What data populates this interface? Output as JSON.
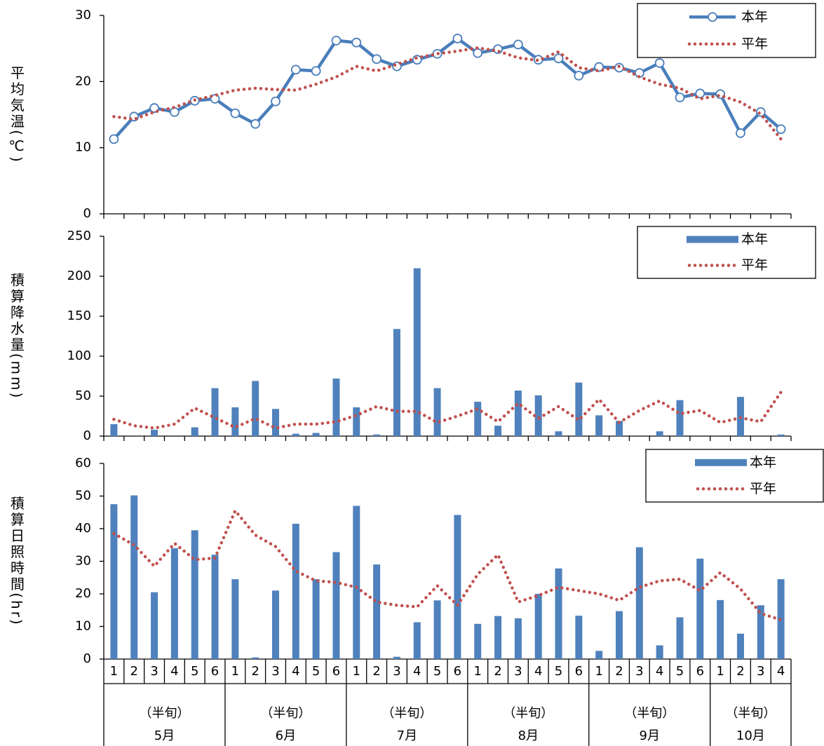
{
  "chart_data": [
    {
      "type": "line",
      "ylabel": "平均気温(℃)",
      "ylim": [
        0,
        30
      ],
      "yticks": [
        0,
        10,
        20,
        30
      ],
      "legend": "upper right",
      "series": [
        {
          "name": "本年",
          "type": "line",
          "color": "#4a7ebb",
          "markers": true,
          "line_style": "solid",
          "values": [
            11.3,
            14.7,
            16.0,
            15.4,
            17.1,
            17.4,
            15.2,
            13.6,
            17.0,
            21.8,
            21.6,
            26.2,
            25.9,
            23.4,
            22.3,
            23.3,
            24.2,
            26.5,
            24.3,
            24.9,
            25.6,
            23.3,
            23.5,
            20.9,
            22.2,
            22.1,
            21.3,
            22.8,
            17.6,
            18.2,
            18.1,
            12.2,
            15.4,
            12.8
          ]
        },
        {
          "name": "平年",
          "type": "line",
          "color": "#c0504d",
          "markers": false,
          "line_style": "dotted",
          "values": [
            14.7,
            14.3,
            15.4,
            16.1,
            17.2,
            17.9,
            18.7,
            19.0,
            18.8,
            18.7,
            19.6,
            20.7,
            22.3,
            21.6,
            22.6,
            23.6,
            24.2,
            24.6,
            25.1,
            24.6,
            23.6,
            23.2,
            24.5,
            22.1,
            21.6,
            22.3,
            20.7,
            19.6,
            19.0,
            17.4,
            17.9,
            16.9,
            15.1,
            11.3
          ]
        }
      ]
    },
    {
      "type": "bar",
      "ylabel": "積算降水量(mm)",
      "ylim": [
        0,
        250
      ],
      "yticks": [
        0,
        50,
        100,
        150,
        200,
        250
      ],
      "legend": "upper right",
      "series": [
        {
          "name": "本年",
          "type": "bar",
          "color": "#4f81bd",
          "values": [
            15,
            0,
            8,
            0,
            11,
            60,
            36,
            69,
            34,
            3,
            4,
            72,
            36,
            2,
            134,
            210,
            60,
            0,
            43,
            13,
            57,
            51,
            6,
            67,
            26,
            19,
            0,
            6,
            45,
            0,
            0,
            49,
            0,
            2
          ]
        },
        {
          "name": "平年",
          "type": "line",
          "color": "#c0504d",
          "markers": false,
          "line_style": "dotted",
          "values": [
            21,
            13,
            10,
            15,
            35,
            23,
            11,
            22,
            10,
            15,
            15,
            18,
            26,
            37,
            31,
            31,
            17,
            25,
            34,
            18,
            41,
            22,
            37,
            20,
            46,
            17,
            32,
            44,
            28,
            32,
            17,
            23,
            18,
            55
          ]
        }
      ]
    },
    {
      "type": "bar",
      "ylabel": "積算日照時間(hr)",
      "ylim": [
        0,
        60
      ],
      "yticks": [
        0,
        10,
        20,
        30,
        40,
        50,
        60
      ],
      "legend": "upper right",
      "series": [
        {
          "name": "本年",
          "type": "bar",
          "color": "#4f81bd",
          "values": [
            47.5,
            50.2,
            20.5,
            34,
            39.5,
            32,
            24.5,
            0.5,
            21,
            41.5,
            24.5,
            32.8,
            47,
            29,
            0.7,
            11.3,
            18,
            44.2,
            10.8,
            13.2,
            12.5,
            20,
            27.8,
            13.3,
            2.5,
            14.7,
            34.3,
            4.2,
            12.8,
            30.8,
            18.1,
            7.8,
            16.5,
            24.5
          ]
        },
        {
          "name": "平年",
          "type": "line",
          "color": "#c0504d",
          "markers": false,
          "line_style": "dotted",
          "values": [
            38.5,
            35,
            28.5,
            35.5,
            30.5,
            31,
            45.5,
            38,
            34.5,
            27,
            24,
            23.5,
            22,
            17.5,
            16.5,
            16,
            22.5,
            16.5,
            26,
            32,
            17.5,
            19.5,
            22,
            21,
            20,
            18,
            22,
            24,
            24.5,
            21,
            26.5,
            21.5,
            14,
            12
          ]
        }
      ],
      "category_groups": [
        {
          "label": "（半旬）",
          "month": "5月",
          "categories": [
            "1",
            "2",
            "3",
            "4",
            "5",
            "6"
          ]
        },
        {
          "label": "（半旬）",
          "month": "6月",
          "categories": [
            "1",
            "2",
            "3",
            "4",
            "5",
            "6"
          ]
        },
        {
          "label": "（半旬）",
          "month": "7月",
          "categories": [
            "1",
            "2",
            "3",
            "4",
            "5",
            "6"
          ]
        },
        {
          "label": "（半旬）",
          "month": "8月",
          "categories": [
            "1",
            "2",
            "3",
            "4",
            "5",
            "6"
          ]
        },
        {
          "label": "（半旬）",
          "month": "9月",
          "categories": [
            "1",
            "2",
            "3",
            "4",
            "5",
            "6"
          ]
        },
        {
          "label": "（半旬）",
          "month": "10月",
          "categories": [
            "1",
            "2",
            "3",
            "4"
          ]
        }
      ]
    }
  ]
}
